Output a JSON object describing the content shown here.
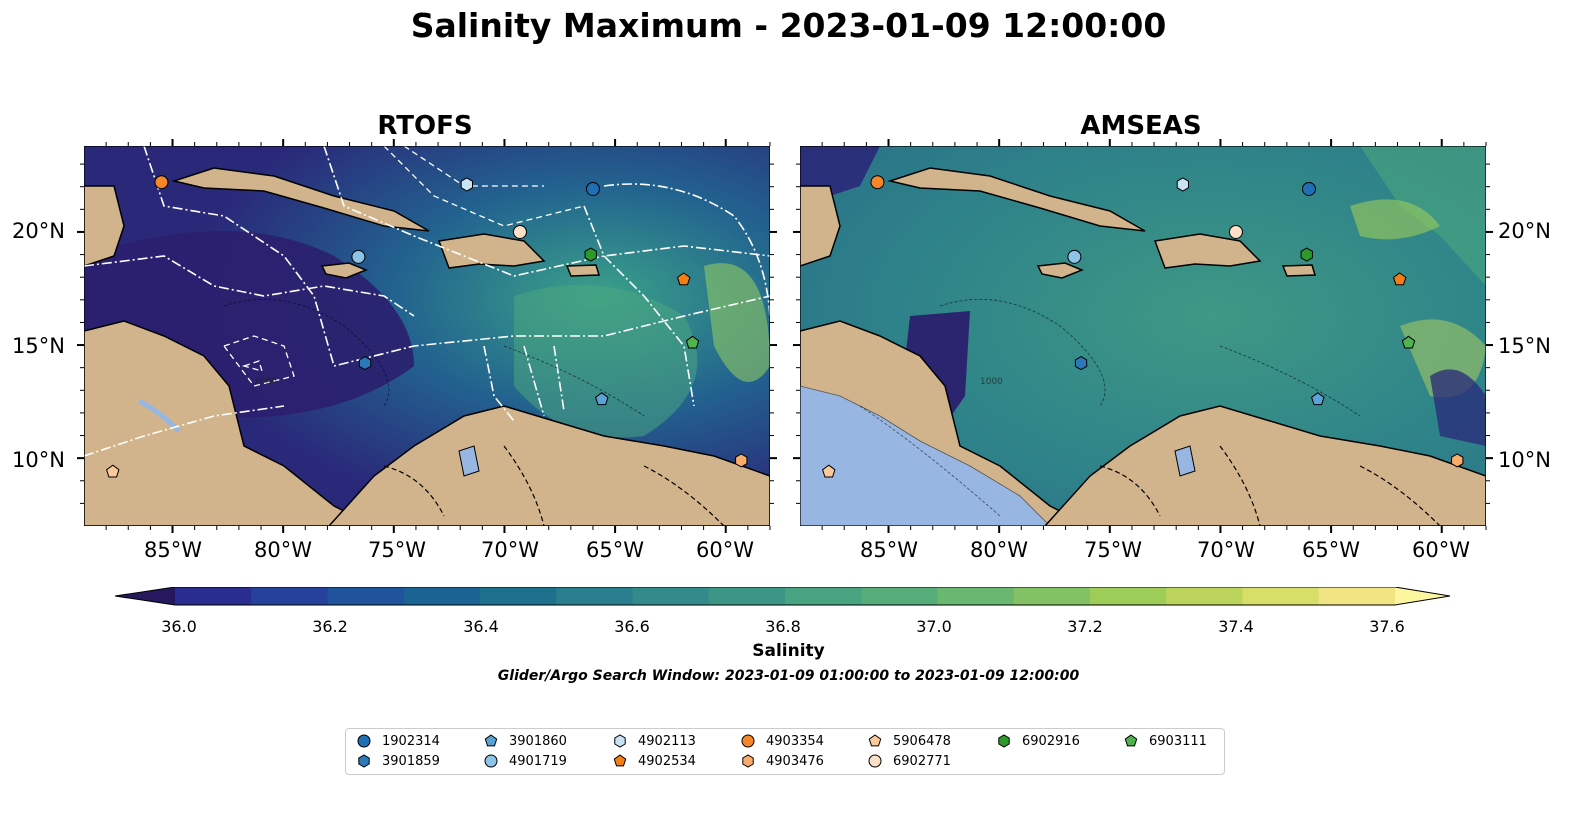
{
  "title": "Salinity Maximum - 2023-01-09 12:00:00",
  "panels": [
    {
      "id": "rtofs",
      "title": "RTOFS",
      "contour_label": "1000"
    },
    {
      "id": "amseas",
      "title": "AMSEAS",
      "contour_label": "1000"
    }
  ],
  "lat_labels": [
    "20°N",
    "15°N",
    "10°N"
  ],
  "lon_labels": [
    "85°W",
    "80°W",
    "75°W",
    "70°W",
    "65°W",
    "60°W"
  ],
  "colorbar": {
    "label": "Salinity",
    "ticks": [
      "36.0",
      "36.2",
      "36.4",
      "36.6",
      "36.8",
      "37.0",
      "37.2",
      "37.4",
      "37.6"
    ],
    "min": 36.0,
    "max": 37.6,
    "step": 0.1,
    "extend": "both",
    "colormap": [
      "#26185f",
      "#292d8f",
      "#25419b",
      "#1f539b",
      "#1b6392",
      "#1e718d",
      "#287e8c",
      "#338a8a",
      "#3c9686",
      "#47a380",
      "#56ad7a",
      "#6ab870",
      "#82c264",
      "#9dcc58",
      "#bcd45b",
      "#d7df68",
      "#f1e483",
      "#fdf6a0"
    ]
  },
  "search_window": "Glider/Argo Search Window: 2023-01-09 01:00:00 to 2023-01-09 12:00:00",
  "colors": {
    "land": "#d2b48c",
    "lake": "#97b6e1",
    "ocean_deep": "#2b1f6e",
    "ocean_mid": "#2a7b8c",
    "route": "#ffffff"
  },
  "floats": [
    {
      "id": "1902314",
      "marker": "circle",
      "color": "#1f6fb4",
      "lon": -66.0,
      "lat": 21.9
    },
    {
      "id": "3901859",
      "marker": "hexagon",
      "color": "#2a79b8",
      "lon": -76.3,
      "lat": 14.2
    },
    {
      "id": "3901860",
      "marker": "pentagon",
      "color": "#5ba3d6",
      "lon": -65.6,
      "lat": 12.6
    },
    {
      "id": "4901719",
      "marker": "circle",
      "color": "#8ec3e8",
      "lon": -76.6,
      "lat": 18.9
    },
    {
      "id": "4902113",
      "marker": "hexagon",
      "color": "#c9e3f5",
      "lon": -71.7,
      "lat": 22.1
    },
    {
      "id": "4902534",
      "marker": "pentagon",
      "color": "#f57f17",
      "lon": -61.9,
      "lat": 17.9
    },
    {
      "id": "4903354",
      "marker": "circle",
      "color": "#f5862a",
      "lon": -85.5,
      "lat": 22.2
    },
    {
      "id": "4903476",
      "marker": "hexagon",
      "color": "#fbac6b",
      "lon": -59.3,
      "lat": 9.9
    },
    {
      "id": "5906478",
      "marker": "pentagon",
      "color": "#fdc99a",
      "lon": -87.7,
      "lat": 9.4
    },
    {
      "id": "6902771",
      "marker": "circle",
      "color": "#fde0c8",
      "lon": -69.3,
      "lat": 20.0
    },
    {
      "id": "6902916",
      "marker": "hexagon",
      "color": "#2b9a2b",
      "lon": -66.1,
      "lat": 19.0
    },
    {
      "id": "6903111",
      "marker": "pentagon",
      "color": "#4fb34f",
      "lon": -61.5,
      "lat": 15.1
    }
  ]
}
